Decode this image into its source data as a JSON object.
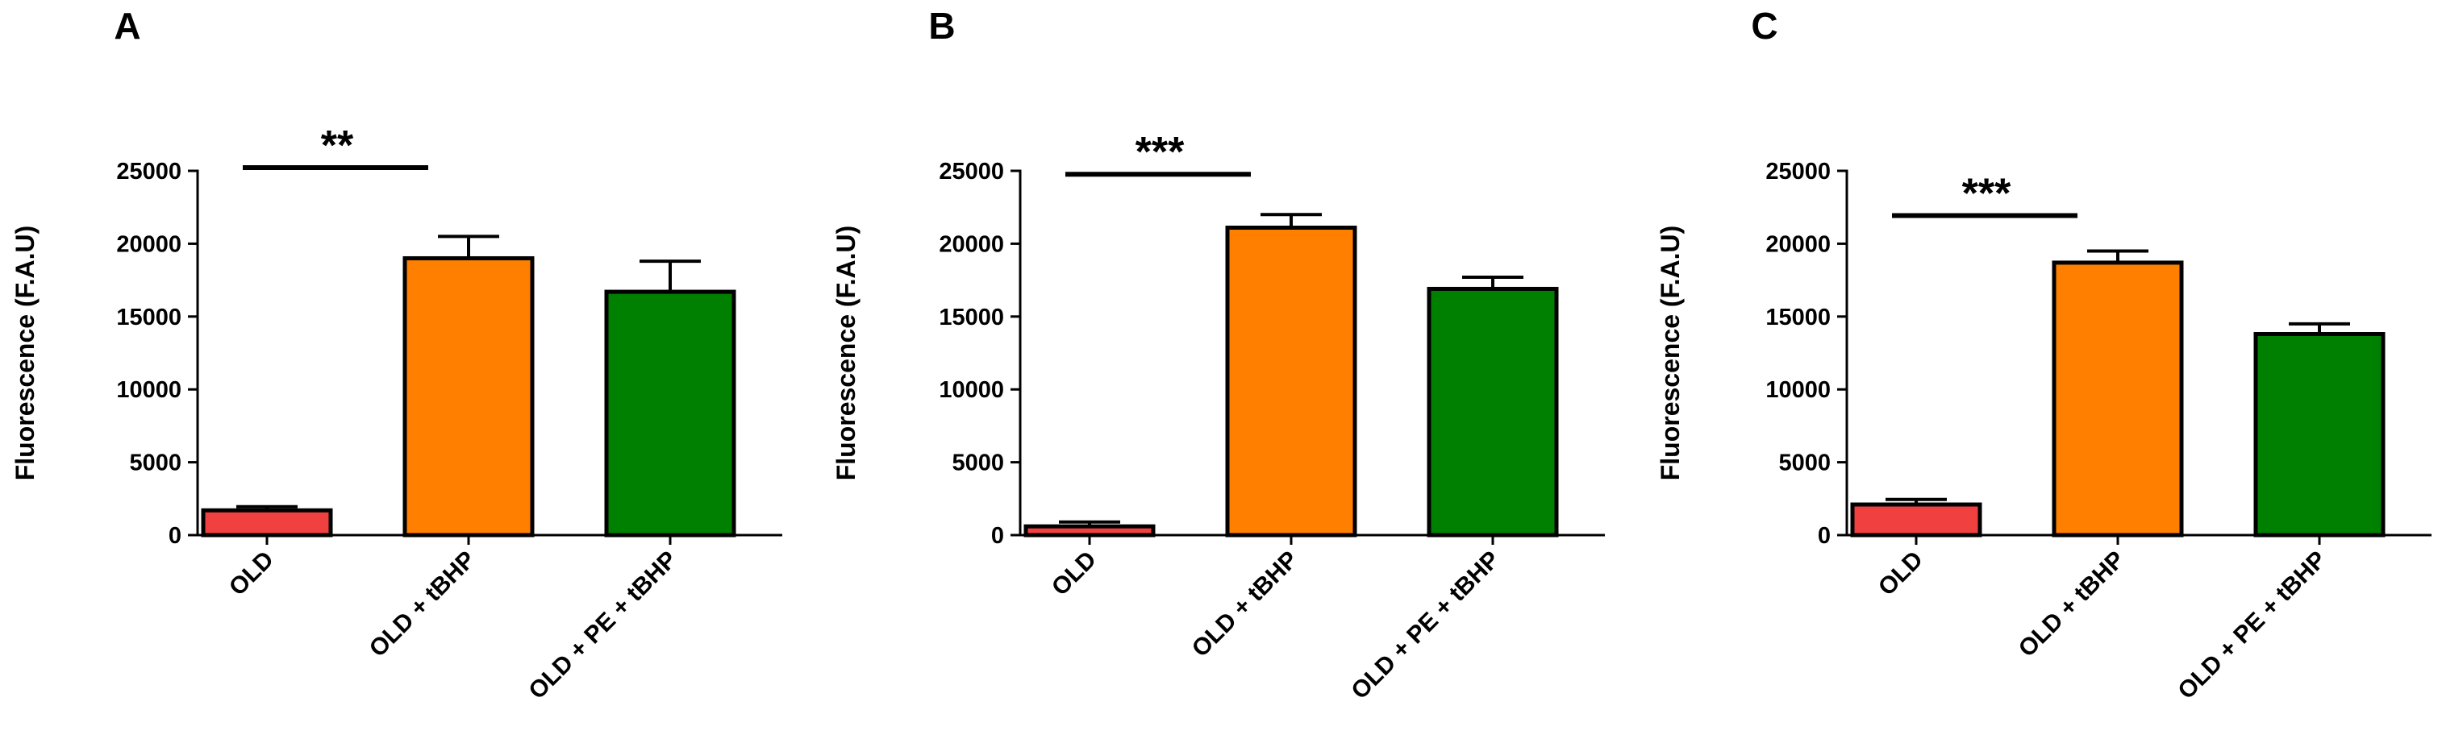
{
  "chart_data": [
    {
      "panel": "A",
      "type": "bar",
      "ylabel": "Fluorescence (F.A.U)",
      "ylim": [
        0,
        25000
      ],
      "yticks": [
        0,
        5000,
        10000,
        15000,
        20000,
        25000
      ],
      "categories": [
        "OLD",
        "OLD + tBHP",
        "OLD + PE + tBHP"
      ],
      "values": [
        1700,
        19000,
        16700
      ],
      "errors": [
        250,
        1500,
        2100
      ],
      "colors": [
        "#f04040",
        "#ff8000",
        "#008000"
      ],
      "significance": {
        "from": 0,
        "to": 1,
        "label": "**"
      }
    },
    {
      "panel": "B",
      "type": "bar",
      "ylabel": "Fluorescence (F.A.U)",
      "ylim": [
        0,
        25000
      ],
      "yticks": [
        0,
        5000,
        10000,
        15000,
        20000,
        25000
      ],
      "categories": [
        "OLD",
        "OLD + tBHP",
        "OLD + PE + tBHP"
      ],
      "values": [
        600,
        21100,
        16900
      ],
      "errors": [
        300,
        900,
        800
      ],
      "colors": [
        "#f04040",
        "#ff8000",
        "#008000"
      ],
      "significance": {
        "from": 0,
        "to": 1,
        "label": "***"
      }
    },
    {
      "panel": "C",
      "type": "bar",
      "ylabel": "Fluorescence (F.A.U)",
      "ylim": [
        0,
        25000
      ],
      "yticks": [
        0,
        5000,
        10000,
        15000,
        20000,
        25000
      ],
      "categories": [
        "OLD",
        "OLD + tBHP",
        "OLD + PE + tBHP"
      ],
      "values": [
        2100,
        18700,
        13800
      ],
      "errors": [
        350,
        800,
        700
      ],
      "colors": [
        "#f04040",
        "#ff8000",
        "#008000"
      ],
      "significance": {
        "from": 0,
        "to": 1,
        "label": "***"
      }
    }
  ]
}
